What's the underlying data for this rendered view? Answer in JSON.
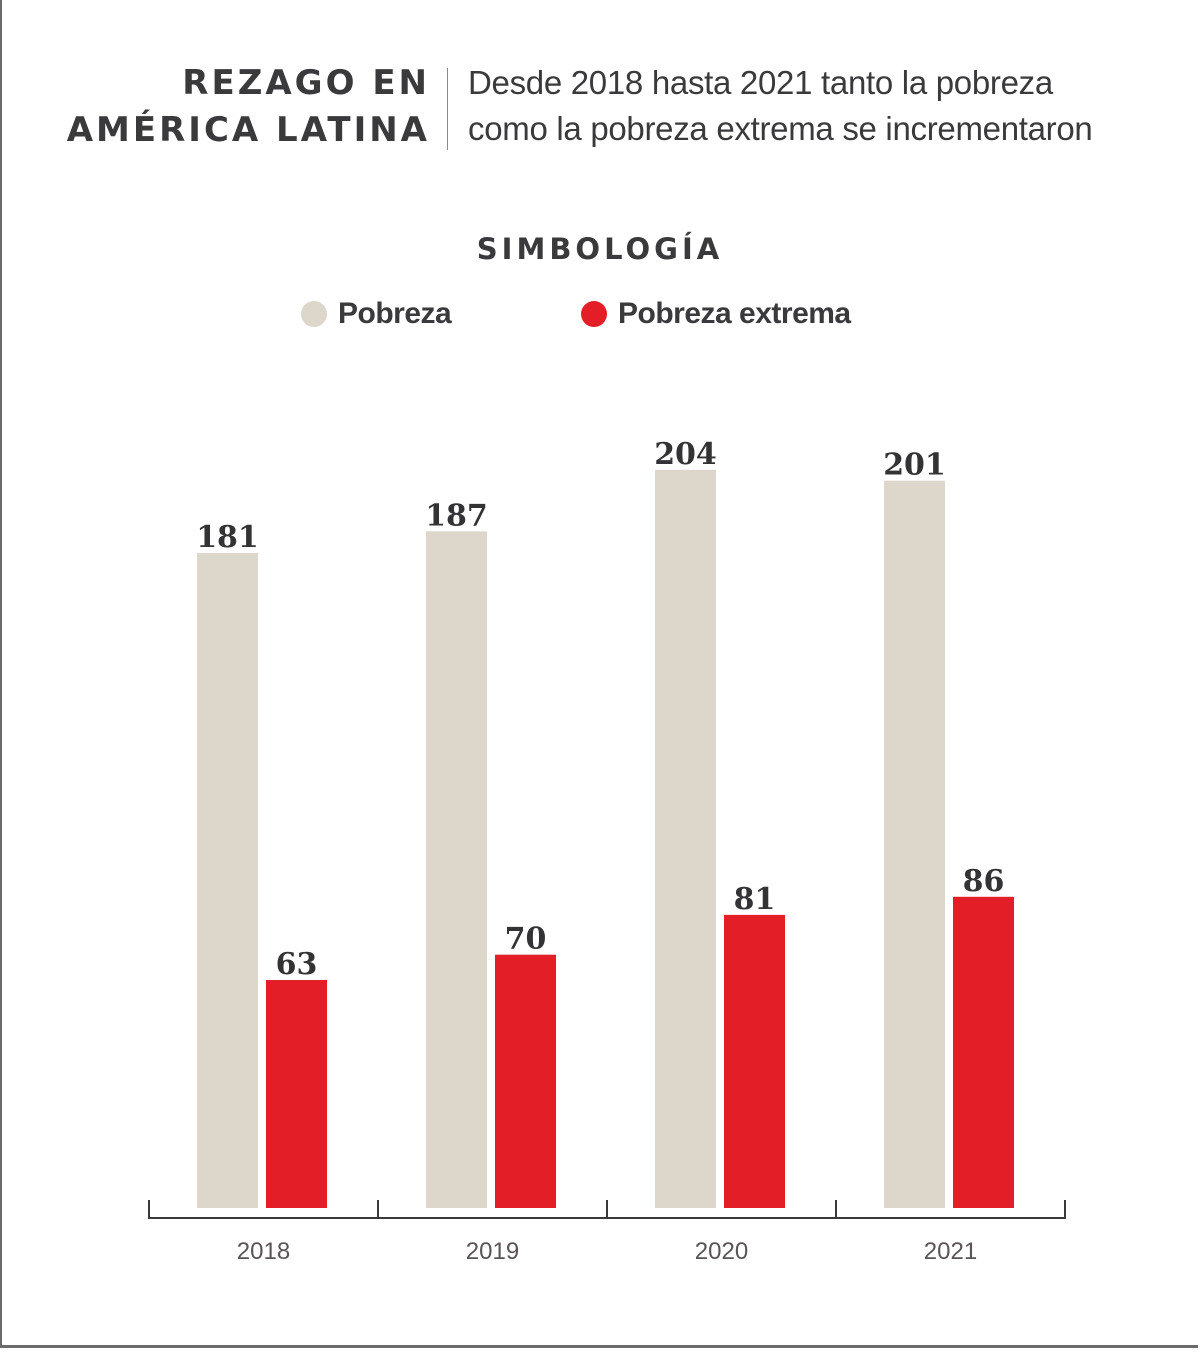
{
  "header": {
    "title_lines": [
      "REZAGO EN",
      "AMÉRICA LATINA"
    ],
    "subtitle_lines": [
      "Desde 2018 hasta 2021 tanto la pobreza",
      "como la pobreza extrema se incrementaron"
    ]
  },
  "legend": {
    "title": "SIMBOLOGÍA",
    "items": [
      {
        "label": "Pobreza",
        "color": "#ddd6cb"
      },
      {
        "label": "Pobreza extrema",
        "color": "#e41e26"
      }
    ]
  },
  "chart_data": {
    "type": "bar",
    "title": "REZAGO EN AMÉRICA LATINA",
    "subtitle": "Desde 2018 hasta 2021 tanto la pobreza como la pobreza extrema se incrementaron",
    "categories": [
      "2018",
      "2019",
      "2020",
      "2021"
    ],
    "series": [
      {
        "name": "Pobreza",
        "color": "#ddd6cb",
        "values": [
          181,
          187,
          204,
          201
        ]
      },
      {
        "name": "Pobreza extrema",
        "color": "#e41e26",
        "values": [
          63,
          70,
          81,
          86
        ]
      }
    ],
    "xlabel": "",
    "ylabel": "",
    "ylim": [
      0,
      215
    ],
    "grid": false,
    "legend_position": "top-center",
    "data_labels": true
  }
}
